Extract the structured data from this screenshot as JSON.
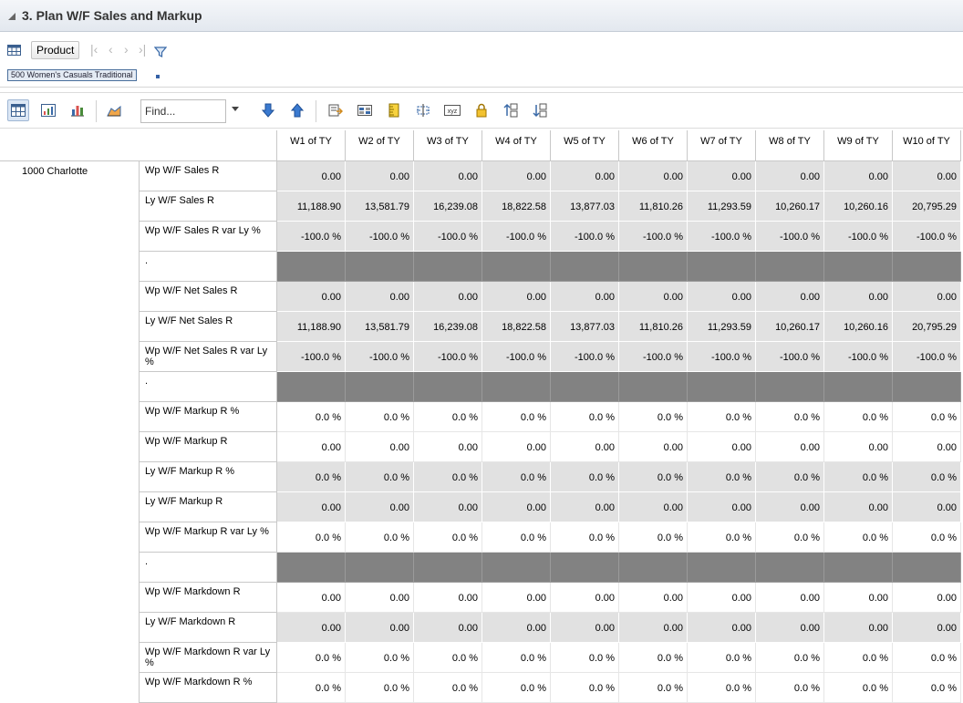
{
  "window": {
    "title": "3. Plan W/F Sales and Markup"
  },
  "pov": {
    "product_label": "Product",
    "selection": "500 Women's Casuals Traditional"
  },
  "toolbar": {
    "find_placeholder": "Find..."
  },
  "grid": {
    "columns": [
      "W1 of TY",
      "W2 of TY",
      "W3 of TY",
      "W4 of TY",
      "W5 of TY",
      "W6 of TY",
      "W7 of TY",
      "W8 of TY",
      "W9 of TY",
      "W10 of TY"
    ],
    "location": "1000 Charlotte",
    "rows": [
      {
        "label": "Wp W/F Sales R",
        "style": "gray",
        "values": [
          "0.00",
          "0.00",
          "0.00",
          "0.00",
          "0.00",
          "0.00",
          "0.00",
          "0.00",
          "0.00",
          "0.00"
        ]
      },
      {
        "label": "Ly W/F Sales R",
        "style": "gray",
        "values": [
          "11,188.90",
          "13,581.79",
          "16,239.08",
          "18,822.58",
          "13,877.03",
          "11,810.26",
          "11,293.59",
          "10,260.17",
          "10,260.16",
          "20,795.29"
        ]
      },
      {
        "label": "Wp W/F Sales R var Ly %",
        "style": "gray",
        "values": [
          "-100.0 %",
          "-100.0 %",
          "-100.0 %",
          "-100.0 %",
          "-100.0 %",
          "-100.0 %",
          "-100.0 %",
          "-100.0 %",
          "-100.0 %",
          "-100.0 %"
        ]
      },
      {
        "label": ".",
        "style": "dark",
        "values": [
          "",
          "",
          "",
          "",
          "",
          "",
          "",
          "",
          "",
          ""
        ]
      },
      {
        "label": "Wp W/F Net Sales R",
        "style": "gray",
        "values": [
          "0.00",
          "0.00",
          "0.00",
          "0.00",
          "0.00",
          "0.00",
          "0.00",
          "0.00",
          "0.00",
          "0.00"
        ]
      },
      {
        "label": "Ly W/F Net Sales R",
        "style": "gray",
        "values": [
          "11,188.90",
          "13,581.79",
          "16,239.08",
          "18,822.58",
          "13,877.03",
          "11,810.26",
          "11,293.59",
          "10,260.17",
          "10,260.16",
          "20,795.29"
        ]
      },
      {
        "label": "Wp W/F Net Sales R var Ly %",
        "style": "gray",
        "values": [
          "-100.0 %",
          "-100.0 %",
          "-100.0 %",
          "-100.0 %",
          "-100.0 %",
          "-100.0 %",
          "-100.0 %",
          "-100.0 %",
          "-100.0 %",
          "-100.0 %"
        ]
      },
      {
        "label": ".",
        "style": "dark",
        "values": [
          "",
          "",
          "",
          "",
          "",
          "",
          "",
          "",
          "",
          ""
        ]
      },
      {
        "label": "Wp W/F Markup R %",
        "style": "white",
        "values": [
          "0.0 %",
          "0.0 %",
          "0.0 %",
          "0.0 %",
          "0.0 %",
          "0.0 %",
          "0.0 %",
          "0.0 %",
          "0.0 %",
          "0.0 %"
        ]
      },
      {
        "label": "Wp W/F Markup R",
        "style": "white",
        "values": [
          "0.00",
          "0.00",
          "0.00",
          "0.00",
          "0.00",
          "0.00",
          "0.00",
          "0.00",
          "0.00",
          "0.00"
        ]
      },
      {
        "label": "Ly W/F Markup R %",
        "style": "gray",
        "values": [
          "0.0 %",
          "0.0 %",
          "0.0 %",
          "0.0 %",
          "0.0 %",
          "0.0 %",
          "0.0 %",
          "0.0 %",
          "0.0 %",
          "0.0 %"
        ]
      },
      {
        "label": "Ly W/F Markup R",
        "style": "gray",
        "values": [
          "0.00",
          "0.00",
          "0.00",
          "0.00",
          "0.00",
          "0.00",
          "0.00",
          "0.00",
          "0.00",
          "0.00"
        ]
      },
      {
        "label": "Wp W/F Markup R var Ly %",
        "style": "white",
        "values": [
          "0.0 %",
          "0.0 %",
          "0.0 %",
          "0.0 %",
          "0.0 %",
          "0.0 %",
          "0.0 %",
          "0.0 %",
          "0.0 %",
          "0.0 %"
        ]
      },
      {
        "label": ".",
        "style": "dark",
        "values": [
          "",
          "",
          "",
          "",
          "",
          "",
          "",
          "",
          "",
          ""
        ]
      },
      {
        "label": "Wp W/F Markdown R",
        "style": "white",
        "values": [
          "0.00",
          "0.00",
          "0.00",
          "0.00",
          "0.00",
          "0.00",
          "0.00",
          "0.00",
          "0.00",
          "0.00"
        ]
      },
      {
        "label": "Ly W/F Markdown R",
        "style": "gray",
        "values": [
          "0.00",
          "0.00",
          "0.00",
          "0.00",
          "0.00",
          "0.00",
          "0.00",
          "0.00",
          "0.00",
          "0.00"
        ]
      },
      {
        "label": "Wp W/F Markdown R var Ly %",
        "style": "white",
        "values": [
          "0.0 %",
          "0.0 %",
          "0.0 %",
          "0.0 %",
          "0.0 %",
          "0.0 %",
          "0.0 %",
          "0.0 %",
          "0.0 %",
          "0.0 %"
        ]
      },
      {
        "label": "Wp W/F Markdown R %",
        "style": "white",
        "values": [
          "0.0 %",
          "0.0 %",
          "0.0 %",
          "0.0 %",
          "0.0 %",
          "0.0 %",
          "0.0 %",
          "0.0 %",
          "0.0 %",
          "0.0 %"
        ]
      }
    ]
  }
}
